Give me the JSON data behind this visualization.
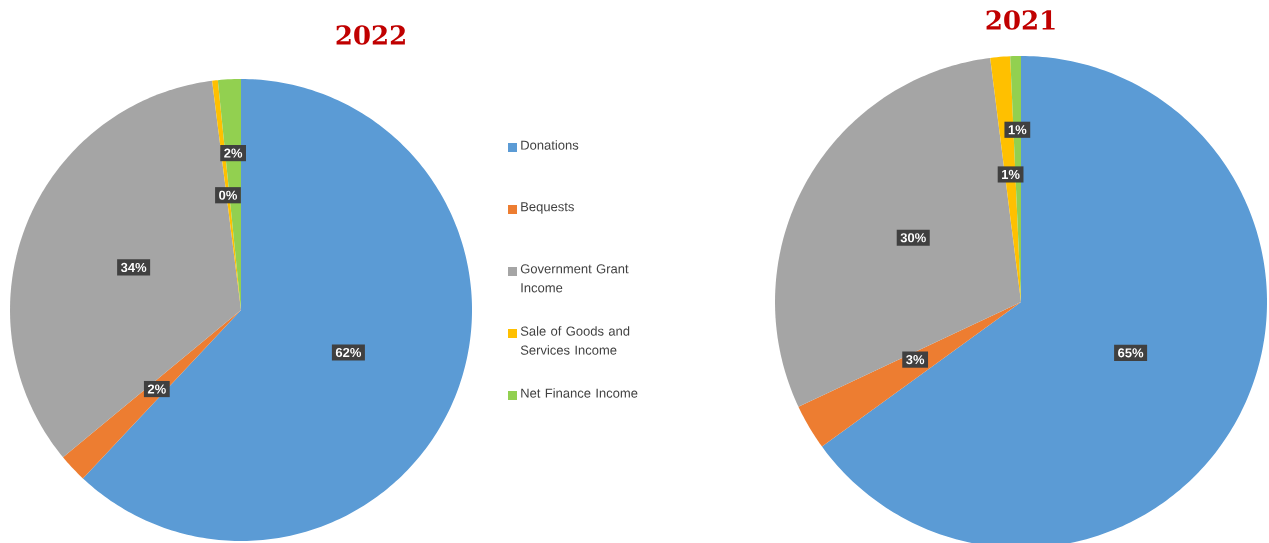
{
  "chart_data": [
    {
      "type": "pie",
      "title": "2022",
      "categories": [
        "Donations",
        "Bequests",
        "Government Grant Income",
        "Sale of Goods and Services Income",
        "Net Finance Income"
      ],
      "values": [
        62,
        2,
        34,
        0.4,
        1.6
      ],
      "value_labels": [
        "62%",
        "2%",
        "34%",
        "0%",
        "2%"
      ],
      "colors": [
        "#5b9bd5",
        "#ed7d31",
        "#a5a5a5",
        "#ffc000",
        "#92d050"
      ],
      "legend": "right"
    },
    {
      "type": "pie",
      "title": "2021",
      "categories": [
        null,
        null,
        null,
        null,
        null
      ],
      "values": [
        65,
        3,
        30,
        1.3,
        0.7
      ],
      "value_labels": [
        "65%",
        "3%",
        "30%",
        "1%",
        "1%"
      ],
      "colors": [
        "#5b9bd5",
        "#ed7d31",
        "#a5a5a5",
        "#ffc000",
        "#92d050"
      ]
    }
  ]
}
